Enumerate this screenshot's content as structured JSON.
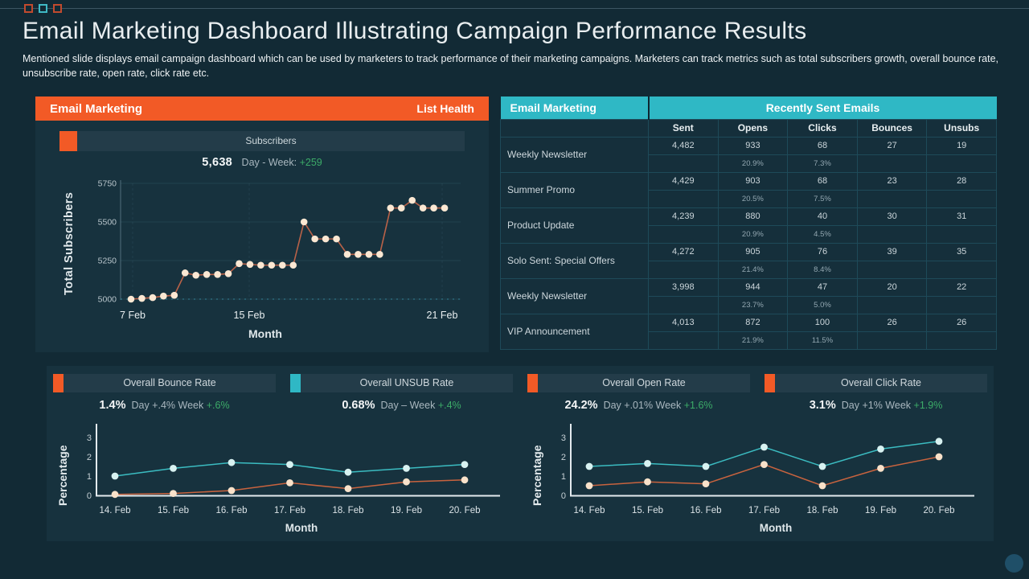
{
  "page": {
    "title": "Email Marketing Dashboard Illustrating Campaign Performance Results",
    "description": "Mentioned slide displays email campaign dashboard which can be used by marketers to track performance of their marketing campaigns. Marketers can track metrics such as total subscribers growth, overall bounce rate, unsubscribe rate, open rate, click rate etc."
  },
  "colors": {
    "accent_orange": "#f25a26",
    "accent_teal": "#2fb8c5",
    "positive_green": "#3cab68",
    "panel_bg": "#17323e",
    "page_bg": "#122a35"
  },
  "decor": {
    "square_colors": [
      "#c14a2e",
      "#3fb9c5",
      "#c14a2e"
    ]
  },
  "subscribers_panel": {
    "header_left": "Email Marketing",
    "header_right": "List Health",
    "section_label": "Subscribers",
    "value": "5,638",
    "delta_label": "Day - Week:",
    "delta_value": "+259"
  },
  "emails_table": {
    "header_left": "Email Marketing",
    "header_right": "Recently Sent Emails",
    "columns": [
      "Sent",
      "Opens",
      "Clicks",
      "Bounces",
      "Unsubs"
    ],
    "rows": [
      {
        "name": "Weekly Newsletter",
        "sent": "4,482",
        "opens": "933",
        "clicks": "68",
        "bounces": "27",
        "unsubs": "19",
        "open_rate": "20.9%",
        "click_rate": "7.3%"
      },
      {
        "name": "Summer Promo",
        "sent": "4,429",
        "opens": "903",
        "clicks": "68",
        "bounces": "23",
        "unsubs": "28",
        "open_rate": "20.5%",
        "click_rate": "7.5%"
      },
      {
        "name": "Product Update",
        "sent": "4,239",
        "opens": "880",
        "clicks": "40",
        "bounces": "30",
        "unsubs": "31",
        "open_rate": "20.9%",
        "click_rate": "4.5%"
      },
      {
        "name": "Solo Sent: Special Offers",
        "sent": "4,272",
        "opens": "905",
        "clicks": "76",
        "bounces": "39",
        "unsubs": "35",
        "open_rate": "21.4%",
        "click_rate": "8.4%"
      },
      {
        "name": "Weekly Newsletter",
        "sent": "3,998",
        "opens": "944",
        "clicks": "47",
        "bounces": "20",
        "unsubs": "22",
        "open_rate": "23.7%",
        "click_rate": "5.0%"
      },
      {
        "name": "VIP Announcement",
        "sent": "4,013",
        "opens": "872",
        "clicks": "100",
        "bounces": "26",
        "unsubs": "26",
        "open_rate": "21.9%",
        "click_rate": "11.5%"
      }
    ]
  },
  "metrics": [
    {
      "label": "Overall  Bounce Rate",
      "accent": "#f25a26",
      "value": "1.4%",
      "delta": "Day +.4% Week",
      "delta_green": "+.6%"
    },
    {
      "label": "Overall  UNSUB Rate",
      "accent": "#2fb8c5",
      "value": "0.68%",
      "delta": "Day – Week",
      "delta_green": "+.4%"
    },
    {
      "label": "Overall  Open Rate",
      "accent": "#f25a26",
      "value": "24.2%",
      "delta": "Day +.01% Week",
      "delta_green": "+1.6%"
    },
    {
      "label": "Overall  Click Rate",
      "accent": "#f25a26",
      "value": "3.1%",
      "delta": "Day +1% Week",
      "delta_green": "+1.9%"
    }
  ],
  "chart_data": [
    {
      "name": "total-subscribers",
      "type": "line",
      "title": "Subscribers",
      "xlabel": "Month",
      "ylabel": "Total Subscribers",
      "ylim": [
        4950,
        5780
      ],
      "yticks": [
        5000,
        5250,
        5500,
        5750
      ],
      "xticks": [
        "7 Feb",
        "15 Feb",
        "21 Feb"
      ],
      "grid": "subtle",
      "series": [
        {
          "name": "Total Subscribers",
          "line_color": "#b96248",
          "marker_color": "#fce8d3",
          "values": [
            5000,
            5005,
            5010,
            5020,
            5025,
            5170,
            5155,
            5160,
            5160,
            5165,
            5230,
            5225,
            5220,
            5220,
            5220,
            5220,
            5500,
            5390,
            5390,
            5390,
            5290,
            5290,
            5290,
            5290,
            5590,
            5590,
            5640,
            5590,
            5590,
            5590
          ]
        }
      ]
    },
    {
      "name": "bounce-unsub-rates",
      "type": "line",
      "xlabel": "Month",
      "ylabel": "Percentage",
      "ylim": [
        0,
        3.5
      ],
      "yticks": [
        0,
        1,
        2,
        3
      ],
      "categories": [
        "14. Feb",
        "15. Feb",
        "16. Feb",
        "17. Feb",
        "18. Feb",
        "19. Feb",
        "20. Feb"
      ],
      "series": [
        {
          "name": "Overall Bounce Rate (teal)",
          "line_color": "#3bbcc1",
          "marker_color": "#d8f2f1",
          "values": [
            1.0,
            1.4,
            1.7,
            1.6,
            1.2,
            1.4,
            1.6
          ]
        },
        {
          "name": "Overall UNSUB Rate (orange)",
          "line_color": "#c8633e",
          "marker_color": "#f9e2ca",
          "values": [
            0.05,
            0.1,
            0.25,
            0.65,
            0.35,
            0.7,
            0.8
          ]
        }
      ]
    },
    {
      "name": "open-click-rates",
      "type": "line",
      "xlabel": "Month",
      "ylabel": "Percentage",
      "ylim": [
        0,
        3.5
      ],
      "yticks": [
        0,
        1,
        2,
        3
      ],
      "categories": [
        "14. Feb",
        "15. Feb",
        "16. Feb",
        "17. Feb",
        "18. Feb",
        "19. Feb",
        "20. Feb"
      ],
      "series": [
        {
          "name": "Overall Open Rate (teal)",
          "line_color": "#3bbcc1",
          "marker_color": "#d8f2f1",
          "values": [
            1.5,
            1.65,
            1.5,
            2.5,
            1.5,
            2.4,
            2.8
          ]
        },
        {
          "name": "Overall Click Rate (orange)",
          "line_color": "#c8633e",
          "marker_color": "#f9e2ca",
          "values": [
            0.5,
            0.7,
            0.6,
            1.6,
            0.5,
            1.4,
            2.0
          ]
        }
      ]
    }
  ]
}
